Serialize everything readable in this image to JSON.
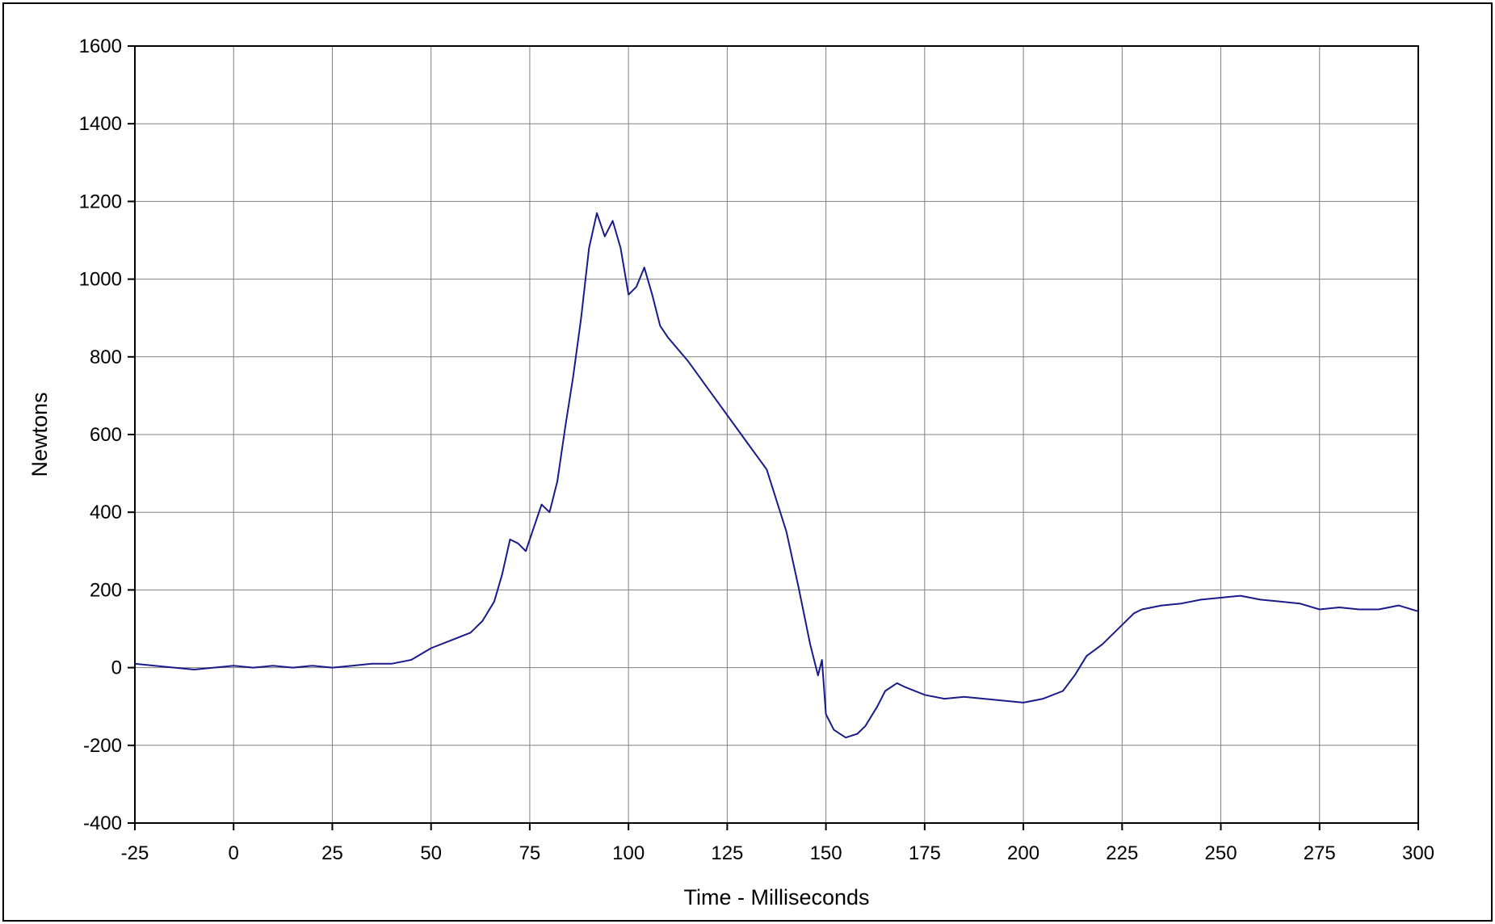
{
  "chart_data": {
    "type": "line",
    "title": "",
    "xlabel": "Time - Milliseconds",
    "ylabel": "Newtons",
    "xlim": [
      -25,
      300
    ],
    "ylim": [
      -400,
      1600
    ],
    "x_ticks": [
      -25,
      0,
      25,
      50,
      75,
      100,
      125,
      150,
      175,
      200,
      225,
      250,
      275,
      300
    ],
    "y_ticks": [
      -400,
      -200,
      0,
      200,
      400,
      600,
      800,
      1000,
      1200,
      1400,
      1600
    ],
    "x_tick_labels": [
      "-25",
      "0",
      "25",
      "50",
      "75",
      "100",
      "125",
      "150",
      "175",
      "200",
      "225",
      "250",
      "275",
      "300"
    ],
    "y_tick_labels": [
      "-400",
      "-200",
      "0",
      "200",
      "400",
      "600",
      "800",
      "1000",
      "1200",
      "1400",
      "1600"
    ],
    "grid": true,
    "legend": "none",
    "series": [
      {
        "color": "#1a1a8c",
        "x": [
          -25,
          -20,
          -15,
          -10,
          -5,
          0,
          5,
          10,
          15,
          20,
          25,
          30,
          35,
          40,
          45,
          50,
          55,
          60,
          63,
          66,
          68,
          70,
          72,
          74,
          76,
          78,
          80,
          82,
          84,
          86,
          88,
          90,
          92,
          94,
          96,
          98,
          100,
          102,
          104,
          106,
          108,
          110,
          115,
          120,
          125,
          130,
          135,
          140,
          143,
          146,
          148,
          149,
          150,
          152,
          155,
          158,
          160,
          163,
          165,
          168,
          170,
          175,
          180,
          185,
          190,
          195,
          200,
          205,
          210,
          213,
          216,
          220,
          225,
          228,
          230,
          235,
          240,
          245,
          250,
          255,
          260,
          265,
          270,
          275,
          280,
          285,
          290,
          295,
          300
        ],
        "y": [
          10,
          5,
          0,
          -5,
          0,
          5,
          0,
          5,
          0,
          5,
          0,
          5,
          10,
          10,
          20,
          50,
          70,
          90,
          120,
          170,
          240,
          330,
          320,
          300,
          360,
          420,
          400,
          480,
          620,
          750,
          900,
          1080,
          1170,
          1110,
          1150,
          1080,
          960,
          980,
          1030,
          960,
          880,
          850,
          790,
          720,
          650,
          580,
          510,
          350,
          210,
          60,
          -20,
          20,
          -120,
          -160,
          -180,
          -170,
          -150,
          -100,
          -60,
          -40,
          -50,
          -70,
          -80,
          -75,
          -80,
          -85,
          -90,
          -80,
          -60,
          -20,
          30,
          60,
          110,
          140,
          150,
          160,
          165,
          175,
          180,
          185,
          175,
          170,
          165,
          150,
          155,
          150,
          150,
          160,
          145
        ]
      }
    ]
  }
}
